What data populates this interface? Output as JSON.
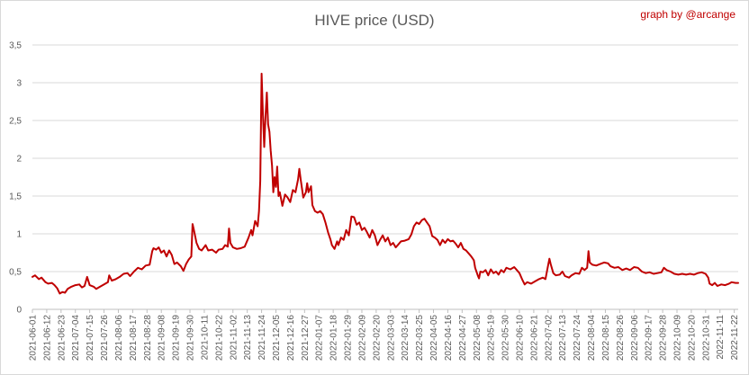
{
  "chart_data": {
    "type": "line",
    "title": "HIVE price (USD)",
    "subtitle": "",
    "xlabel": "",
    "ylabel": "",
    "ylim": [
      0,
      3.5
    ],
    "yticks": [
      "0",
      "0,5",
      "1",
      "1,5",
      "2",
      "2,5",
      "3",
      "3,5"
    ],
    "grid": "horizontal",
    "legend": "none",
    "x_tick_labels": [
      "2021-06-01",
      "2021-06-12",
      "2021-06-23",
      "2021-07-04",
      "2021-07-15",
      "2021-07-26",
      "2021-08-06",
      "2021-08-17",
      "2021-08-28",
      "2021-09-08",
      "2021-09-19",
      "2021-09-30",
      "2021-10-11",
      "2021-10-22",
      "2021-11-02",
      "2021-11-13",
      "2021-11-24",
      "2021-12-05",
      "2021-12-16",
      "2021-12-27",
      "2022-01-07",
      "2022-01-18",
      "2022-01-29",
      "2022-02-09",
      "2022-02-20",
      "2022-03-03",
      "2022-03-14",
      "2022-03-25",
      "2022-04-05",
      "2022-04-16",
      "2022-04-27",
      "2022-05-08",
      "2022-05-19",
      "2022-05-30",
      "2022-06-10",
      "2022-06-21",
      "2022-07-02",
      "2022-07-13",
      "2022-07-24",
      "2022-08-04",
      "2022-08-15",
      "2022-08-26",
      "2022-09-06",
      "2022-09-17",
      "2022-09-28",
      "2022-10-09",
      "2022-10-20",
      "2022-10-31",
      "2022-11-11",
      "2022-11-22"
    ],
    "series": [
      {
        "name": "",
        "color": "#c00000",
        "points": [
          [
            "2021-06-01",
            0.43
          ],
          [
            "2021-06-03",
            0.45
          ],
          [
            "2021-06-06",
            0.4
          ],
          [
            "2021-06-08",
            0.42
          ],
          [
            "2021-06-11",
            0.36
          ],
          [
            "2021-06-13",
            0.34
          ],
          [
            "2021-06-16",
            0.35
          ],
          [
            "2021-06-18",
            0.32
          ],
          [
            "2021-06-20",
            0.28
          ],
          [
            "2021-06-22",
            0.21
          ],
          [
            "2021-06-24",
            0.23
          ],
          [
            "2021-06-26",
            0.22
          ],
          [
            "2021-06-28",
            0.27
          ],
          [
            "2021-07-01",
            0.3
          ],
          [
            "2021-07-04",
            0.32
          ],
          [
            "2021-07-07",
            0.33
          ],
          [
            "2021-07-09",
            0.29
          ],
          [
            "2021-07-11",
            0.31
          ],
          [
            "2021-07-13",
            0.43
          ],
          [
            "2021-07-15",
            0.32
          ],
          [
            "2021-07-18",
            0.3
          ],
          [
            "2021-07-20",
            0.27
          ],
          [
            "2021-07-23",
            0.3
          ],
          [
            "2021-07-26",
            0.33
          ],
          [
            "2021-07-29",
            0.36
          ],
          [
            "2021-07-30",
            0.45
          ],
          [
            "2021-08-01",
            0.38
          ],
          [
            "2021-08-04",
            0.4
          ],
          [
            "2021-08-07",
            0.43
          ],
          [
            "2021-08-10",
            0.47
          ],
          [
            "2021-08-13",
            0.48
          ],
          [
            "2021-08-15",
            0.44
          ],
          [
            "2021-08-18",
            0.5
          ],
          [
            "2021-08-21",
            0.55
          ],
          [
            "2021-08-24",
            0.53
          ],
          [
            "2021-08-27",
            0.58
          ],
          [
            "2021-08-30",
            0.59
          ],
          [
            "2021-09-01",
            0.77
          ],
          [
            "2021-09-02",
            0.81
          ],
          [
            "2021-09-04",
            0.79
          ],
          [
            "2021-09-06",
            0.82
          ],
          [
            "2021-09-08",
            0.75
          ],
          [
            "2021-09-10",
            0.78
          ],
          [
            "2021-09-12",
            0.7
          ],
          [
            "2021-09-14",
            0.78
          ],
          [
            "2021-09-16",
            0.72
          ],
          [
            "2021-09-18",
            0.6
          ],
          [
            "2021-09-20",
            0.62
          ],
          [
            "2021-09-23",
            0.57
          ],
          [
            "2021-09-25",
            0.51
          ],
          [
            "2021-09-27",
            0.6
          ],
          [
            "2021-09-29",
            0.66
          ],
          [
            "2021-10-01",
            0.7
          ],
          [
            "2021-10-02",
            1.13
          ],
          [
            "2021-10-03",
            1.05
          ],
          [
            "2021-10-05",
            0.88
          ],
          [
            "2021-10-07",
            0.8
          ],
          [
            "2021-10-09",
            0.78
          ],
          [
            "2021-10-12",
            0.85
          ],
          [
            "2021-10-14",
            0.78
          ],
          [
            "2021-10-17",
            0.79
          ],
          [
            "2021-10-20",
            0.75
          ],
          [
            "2021-10-22",
            0.79
          ],
          [
            "2021-10-25",
            0.8
          ],
          [
            "2021-10-27",
            0.85
          ],
          [
            "2021-10-29",
            0.83
          ],
          [
            "2021-10-30",
            1.07
          ],
          [
            "2021-10-31",
            0.88
          ],
          [
            "2021-11-02",
            0.82
          ],
          [
            "2021-11-05",
            0.8
          ],
          [
            "2021-11-08",
            0.81
          ],
          [
            "2021-11-11",
            0.83
          ],
          [
            "2021-11-14",
            0.95
          ],
          [
            "2021-11-16",
            1.05
          ],
          [
            "2021-11-17",
            0.98
          ],
          [
            "2021-11-19",
            1.17
          ],
          [
            "2021-11-21",
            1.1
          ],
          [
            "2021-11-22",
            1.3
          ],
          [
            "2021-11-23",
            1.7
          ],
          [
            "2021-11-24",
            3.12
          ],
          [
            "2021-11-25",
            2.6
          ],
          [
            "2021-11-26",
            2.15
          ],
          [
            "2021-11-27",
            2.55
          ],
          [
            "2021-11-28",
            2.87
          ],
          [
            "2021-11-29",
            2.45
          ],
          [
            "2021-11-30",
            2.35
          ],
          [
            "2021-12-01",
            2.1
          ],
          [
            "2021-12-02",
            1.9
          ],
          [
            "2021-12-03",
            1.55
          ],
          [
            "2021-12-04",
            1.75
          ],
          [
            "2021-12-05",
            1.62
          ],
          [
            "2021-12-06",
            1.89
          ],
          [
            "2021-12-07",
            1.5
          ],
          [
            "2021-12-08",
            1.55
          ],
          [
            "2021-12-10",
            1.37
          ],
          [
            "2021-12-12",
            1.52
          ],
          [
            "2021-12-14",
            1.48
          ],
          [
            "2021-12-16",
            1.42
          ],
          [
            "2021-12-18",
            1.58
          ],
          [
            "2021-12-20",
            1.55
          ],
          [
            "2021-12-22",
            1.72
          ],
          [
            "2021-12-23",
            1.86
          ],
          [
            "2021-12-24",
            1.72
          ],
          [
            "2021-12-26",
            1.48
          ],
          [
            "2021-12-28",
            1.55
          ],
          [
            "2021-12-29",
            1.67
          ],
          [
            "2021-12-30",
            1.55
          ],
          [
            "2022-01-01",
            1.63
          ],
          [
            "2022-01-02",
            1.38
          ],
          [
            "2022-01-04",
            1.3
          ],
          [
            "2022-01-06",
            1.28
          ],
          [
            "2022-01-08",
            1.3
          ],
          [
            "2022-01-10",
            1.26
          ],
          [
            "2022-01-12",
            1.15
          ],
          [
            "2022-01-14",
            1.02
          ],
          [
            "2022-01-16",
            0.92
          ],
          [
            "2022-01-17",
            0.85
          ],
          [
            "2022-01-19",
            0.8
          ],
          [
            "2022-01-21",
            0.9
          ],
          [
            "2022-01-22",
            0.85
          ],
          [
            "2022-01-24",
            0.95
          ],
          [
            "2022-01-26",
            0.92
          ],
          [
            "2022-01-28",
            1.05
          ],
          [
            "2022-01-30",
            0.98
          ],
          [
            "2022-02-01",
            1.23
          ],
          [
            "2022-02-03",
            1.22
          ],
          [
            "2022-02-05",
            1.12
          ],
          [
            "2022-02-07",
            1.15
          ],
          [
            "2022-02-09",
            1.05
          ],
          [
            "2022-02-11",
            1.08
          ],
          [
            "2022-02-13",
            1.02
          ],
          [
            "2022-02-15",
            0.95
          ],
          [
            "2022-02-17",
            1.05
          ],
          [
            "2022-02-19",
            0.98
          ],
          [
            "2022-02-21",
            0.85
          ],
          [
            "2022-02-23",
            0.92
          ],
          [
            "2022-02-25",
            0.98
          ],
          [
            "2022-02-27",
            0.9
          ],
          [
            "2022-03-01",
            0.95
          ],
          [
            "2022-03-03",
            0.85
          ],
          [
            "2022-03-05",
            0.88
          ],
          [
            "2022-03-07",
            0.82
          ],
          [
            "2022-03-09",
            0.86
          ],
          [
            "2022-03-11",
            0.9
          ],
          [
            "2022-03-14",
            0.91
          ],
          [
            "2022-03-17",
            0.93
          ],
          [
            "2022-03-19",
            0.99
          ],
          [
            "2022-03-21",
            1.1
          ],
          [
            "2022-03-23",
            1.15
          ],
          [
            "2022-03-25",
            1.13
          ],
          [
            "2022-03-27",
            1.18
          ],
          [
            "2022-03-29",
            1.2
          ],
          [
            "2022-03-31",
            1.15
          ],
          [
            "2022-04-02",
            1.1
          ],
          [
            "2022-04-04",
            0.97
          ],
          [
            "2022-04-06",
            0.95
          ],
          [
            "2022-04-08",
            0.92
          ],
          [
            "2022-04-10",
            0.85
          ],
          [
            "2022-04-12",
            0.92
          ],
          [
            "2022-04-14",
            0.88
          ],
          [
            "2022-04-16",
            0.93
          ],
          [
            "2022-04-18",
            0.9
          ],
          [
            "2022-04-20",
            0.91
          ],
          [
            "2022-04-22",
            0.87
          ],
          [
            "2022-04-24",
            0.82
          ],
          [
            "2022-04-26",
            0.88
          ],
          [
            "2022-04-28",
            0.8
          ],
          [
            "2022-04-30",
            0.78
          ],
          [
            "2022-05-02",
            0.74
          ],
          [
            "2022-05-04",
            0.7
          ],
          [
            "2022-05-06",
            0.65
          ],
          [
            "2022-05-07",
            0.55
          ],
          [
            "2022-05-09",
            0.45
          ],
          [
            "2022-05-10",
            0.41
          ],
          [
            "2022-05-11",
            0.5
          ],
          [
            "2022-05-13",
            0.49
          ],
          [
            "2022-05-15",
            0.52
          ],
          [
            "2022-05-17",
            0.45
          ],
          [
            "2022-05-19",
            0.53
          ],
          [
            "2022-05-21",
            0.48
          ],
          [
            "2022-05-23",
            0.5
          ],
          [
            "2022-05-25",
            0.46
          ],
          [
            "2022-05-27",
            0.52
          ],
          [
            "2022-05-29",
            0.49
          ],
          [
            "2022-05-31",
            0.55
          ],
          [
            "2022-06-03",
            0.53
          ],
          [
            "2022-06-06",
            0.56
          ],
          [
            "2022-06-08",
            0.52
          ],
          [
            "2022-06-10",
            0.48
          ],
          [
            "2022-06-12",
            0.4
          ],
          [
            "2022-06-14",
            0.33
          ],
          [
            "2022-06-16",
            0.36
          ],
          [
            "2022-06-19",
            0.34
          ],
          [
            "2022-06-22",
            0.37
          ],
          [
            "2022-06-25",
            0.4
          ],
          [
            "2022-06-28",
            0.42
          ],
          [
            "2022-06-30",
            0.4
          ],
          [
            "2022-07-02",
            0.58
          ],
          [
            "2022-07-03",
            0.67
          ],
          [
            "2022-07-04",
            0.6
          ],
          [
            "2022-07-06",
            0.48
          ],
          [
            "2022-07-08",
            0.45
          ],
          [
            "2022-07-11",
            0.46
          ],
          [
            "2022-07-13",
            0.5
          ],
          [
            "2022-07-15",
            0.44
          ],
          [
            "2022-07-18",
            0.42
          ],
          [
            "2022-07-20",
            0.45
          ],
          [
            "2022-07-23",
            0.48
          ],
          [
            "2022-07-26",
            0.47
          ],
          [
            "2022-07-28",
            0.55
          ],
          [
            "2022-07-30",
            0.52
          ],
          [
            "2022-08-01",
            0.55
          ],
          [
            "2022-08-02",
            0.77
          ],
          [
            "2022-08-03",
            0.62
          ],
          [
            "2022-08-05",
            0.59
          ],
          [
            "2022-08-08",
            0.58
          ],
          [
            "2022-08-11",
            0.6
          ],
          [
            "2022-08-14",
            0.62
          ],
          [
            "2022-08-17",
            0.61
          ],
          [
            "2022-08-19",
            0.57
          ],
          [
            "2022-08-22",
            0.55
          ],
          [
            "2022-08-25",
            0.56
          ],
          [
            "2022-08-28",
            0.52
          ],
          [
            "2022-08-31",
            0.54
          ],
          [
            "2022-09-03",
            0.52
          ],
          [
            "2022-09-06",
            0.56
          ],
          [
            "2022-09-09",
            0.55
          ],
          [
            "2022-09-12",
            0.5
          ],
          [
            "2022-09-15",
            0.48
          ],
          [
            "2022-09-18",
            0.49
          ],
          [
            "2022-09-21",
            0.47
          ],
          [
            "2022-09-24",
            0.48
          ],
          [
            "2022-09-27",
            0.49
          ],
          [
            "2022-09-29",
            0.55
          ],
          [
            "2022-10-01",
            0.52
          ],
          [
            "2022-10-04",
            0.5
          ],
          [
            "2022-10-07",
            0.47
          ],
          [
            "2022-10-10",
            0.46
          ],
          [
            "2022-10-13",
            0.47
          ],
          [
            "2022-10-16",
            0.46
          ],
          [
            "2022-10-19",
            0.47
          ],
          [
            "2022-10-22",
            0.46
          ],
          [
            "2022-10-25",
            0.48
          ],
          [
            "2022-10-28",
            0.49
          ],
          [
            "2022-10-31",
            0.47
          ],
          [
            "2022-11-02",
            0.42
          ],
          [
            "2022-11-03",
            0.34
          ],
          [
            "2022-11-05",
            0.32
          ],
          [
            "2022-11-07",
            0.35
          ],
          [
            "2022-11-09",
            0.31
          ],
          [
            "2022-11-12",
            0.33
          ],
          [
            "2022-11-15",
            0.32
          ],
          [
            "2022-11-18",
            0.34
          ],
          [
            "2022-11-20",
            0.36
          ],
          [
            "2022-11-23",
            0.35
          ],
          [
            "2022-11-25",
            0.35
          ]
        ]
      }
    ]
  },
  "header": {
    "credit": "graph by @arcange"
  },
  "colors": {
    "line": "#c00000",
    "grid": "#d9d9d9",
    "axis_text": "#595959",
    "credit": "#c00000"
  }
}
